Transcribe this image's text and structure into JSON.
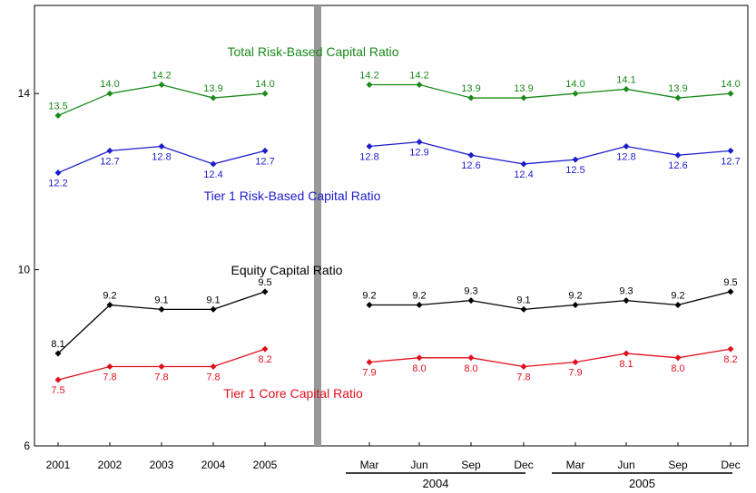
{
  "chart_data": {
    "type": "line",
    "ylim": [
      6,
      16
    ],
    "yticks": [
      6,
      10,
      14
    ],
    "grid": false,
    "colors": {
      "total": "#1a8a1a",
      "tier1": "#1c1ccc",
      "equity": "#000000",
      "core": "#e0101e",
      "separator": "#999999"
    },
    "annual": {
      "categories": [
        "2001",
        "2002",
        "2003",
        "2004",
        "2005"
      ]
    },
    "quarterly": {
      "categories": [
        "Mar",
        "Jun",
        "Sep",
        "Dec",
        "Mar",
        "Jun",
        "Sep",
        "Dec"
      ],
      "years": [
        {
          "label": "2004",
          "from": 0,
          "to": 3
        },
        {
          "label": "2005",
          "from": 4,
          "to": 7
        }
      ]
    },
    "series": [
      {
        "key": "total",
        "name": "Total Risk-Based Capital Ratio",
        "annual": [
          13.5,
          14.0,
          14.2,
          13.9,
          14.0
        ],
        "quarterly": [
          14.2,
          14.2,
          13.9,
          13.9,
          14.0,
          14.1,
          13.9,
          14.0
        ],
        "label_pos": "above"
      },
      {
        "key": "tier1",
        "name": "Tier 1 Risk-Based Capital Ratio",
        "annual": [
          12.2,
          12.7,
          12.8,
          12.4,
          12.7
        ],
        "quarterly": [
          12.8,
          12.9,
          12.6,
          12.4,
          12.5,
          12.8,
          12.6,
          12.7
        ],
        "label_pos": "below"
      },
      {
        "key": "equity",
        "name": "Equity Capital Ratio",
        "annual": [
          8.1,
          9.2,
          9.1,
          9.1,
          9.5
        ],
        "quarterly": [
          9.2,
          9.2,
          9.3,
          9.1,
          9.2,
          9.3,
          9.2,
          9.5
        ],
        "label_pos": "above"
      },
      {
        "key": "core",
        "name": "Tier 1 Core Capital Ratio",
        "annual": [
          7.5,
          7.8,
          7.8,
          7.8,
          8.2
        ],
        "quarterly": [
          7.9,
          8.0,
          8.0,
          7.8,
          7.9,
          8.1,
          8.0,
          8.2
        ],
        "label_pos": "below"
      }
    ]
  }
}
